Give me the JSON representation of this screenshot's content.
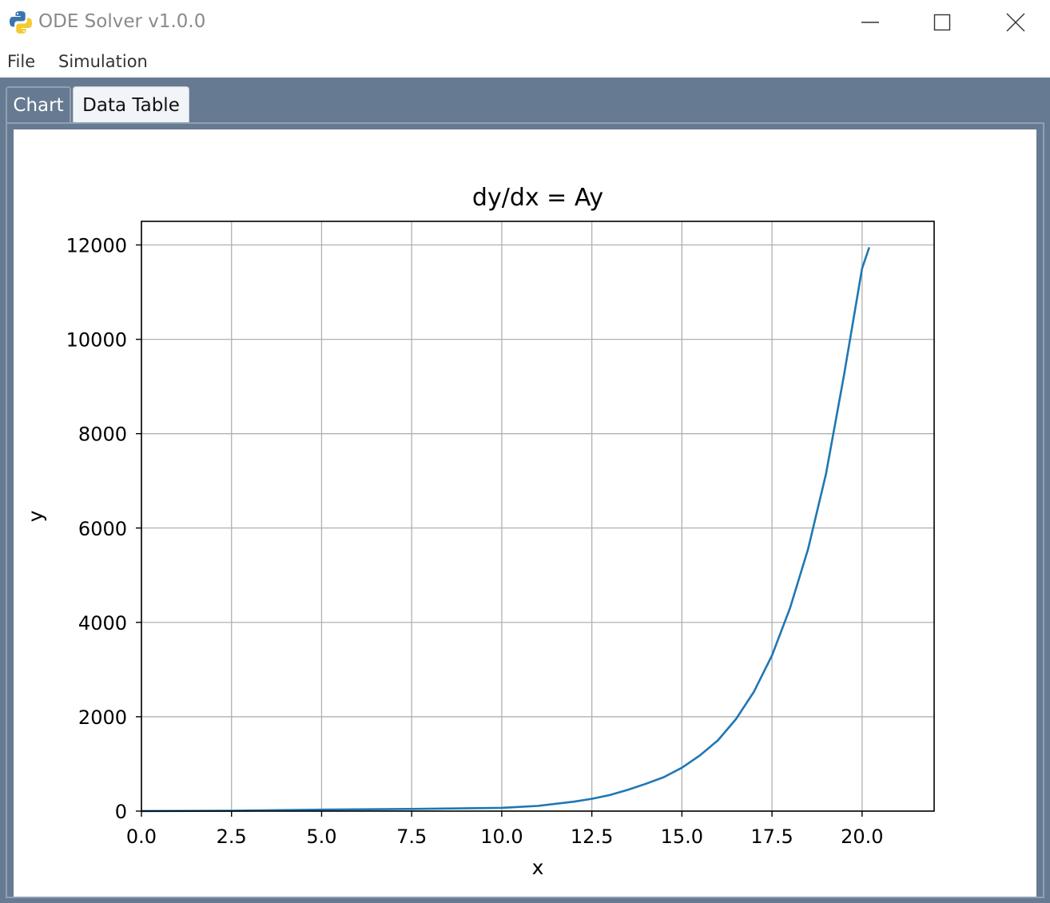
{
  "window": {
    "title": "ODE Solver v1.0.0",
    "icon": "python-icon"
  },
  "menu": {
    "items": [
      "File",
      "Simulation"
    ]
  },
  "tabs": [
    {
      "label": "Chart",
      "active": true
    },
    {
      "label": "Data Table",
      "active": false
    }
  ],
  "chart_data": {
    "type": "line",
    "title": "dy/dx = Ay",
    "xlabel": "x",
    "ylabel": "y",
    "xlim": [
      0,
      22
    ],
    "ylim": [
      0,
      12500
    ],
    "xticks": [
      "0.0",
      "2.5",
      "5.0",
      "7.5",
      "10.0",
      "12.5",
      "15.0",
      "17.5",
      "20.0"
    ],
    "yticks": [
      "0",
      "2000",
      "4000",
      "6000",
      "8000",
      "10000",
      "12000"
    ],
    "grid": true,
    "line_color": "#1f77b4",
    "series": [
      {
        "x": [
          0,
          2.5,
          5.0,
          7.5,
          10.0,
          11.0,
          12.0,
          12.5,
          13.0,
          13.5,
          14.0,
          14.5,
          15.0,
          15.5,
          16.0,
          16.5,
          17.0,
          17.5,
          18.0,
          18.5,
          19.0,
          19.5,
          20.0,
          20.2
        ],
        "y": [
          1,
          6,
          30,
          45,
          70,
          110,
          200,
          260,
          340,
          450,
          580,
          720,
          920,
          1180,
          1500,
          1950,
          2530,
          3300,
          4300,
          5550,
          7150,
          9250,
          11500,
          11950
        ]
      }
    ]
  }
}
